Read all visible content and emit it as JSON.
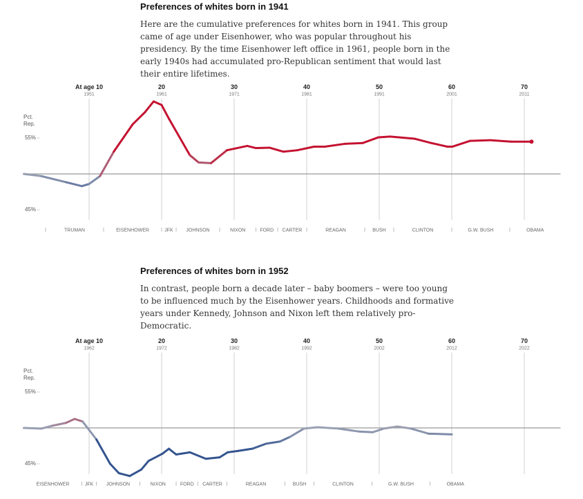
{
  "chart_data": [
    {
      "type": "line",
      "title": "Preferences of whites born in 1941",
      "description": "Here are the cumulative preferences for whites born in 1941. This group came of age under Eisenhower, who was popular throughout his presidency. By the time Eisenhower left office in 1961, people born in the early 1940s had accumulated pro-Republican sentiment that would last their entire lifetimes.",
      "y_label": [
        "Pct.",
        "Rep."
      ],
      "xlim": [
        1,
        75
      ],
      "ylim": [
        43,
        60.5
      ],
      "xticks": [
        {
          "value": 10,
          "label": "At age 10"
        },
        20,
        30,
        40,
        50,
        60,
        70
      ],
      "xtick_years": [
        "1951",
        "1961",
        "1971",
        "1981",
        "1991",
        "2001",
        "2011"
      ],
      "yticks": [
        {
          "value": 55,
          "label": "55%"
        },
        {
          "value": 45,
          "label": "45%"
        }
      ],
      "baseline": 50,
      "colors": {
        "above": "#c41230",
        "below": "#34548f",
        "neutral": "#9aa1b3"
      },
      "end_marker": true,
      "x": [
        1,
        3.4,
        6.8,
        9,
        10,
        11.5,
        13.4,
        16,
        17.7,
        18.9,
        20,
        21,
        23.9,
        25.1,
        26.8,
        29,
        31.8,
        33,
        34.9,
        36.8,
        38.7,
        41,
        42.5,
        45.3,
        47.7,
        49.9,
        51.5,
        54.9,
        57.2,
        59.4,
        60.1,
        62.5,
        65.3,
        68.2,
        71
      ],
      "values": [
        50.0,
        49.7,
        48.85,
        48.3,
        48.6,
        49.7,
        53.1,
        56.9,
        58.6,
        60.1,
        59.6,
        57.7,
        52.6,
        51.6,
        51.5,
        53.3,
        53.9,
        53.6,
        53.65,
        53.1,
        53.3,
        53.8,
        53.8,
        54.2,
        54.3,
        55.1,
        55.2,
        54.9,
        54.3,
        53.8,
        53.8,
        54.6,
        54.7,
        54.5,
        54.5
      ],
      "eras": [
        {
          "label": "TRUMAN",
          "start": 4,
          "end": 12
        },
        {
          "label": "EISENHOWER",
          "start": 12,
          "end": 20
        },
        {
          "label": "JFK",
          "start": 20,
          "end": 22
        },
        {
          "label": "JOHNSON",
          "start": 22,
          "end": 28
        },
        {
          "label": "NIXON",
          "start": 28,
          "end": 33
        },
        {
          "label": "FORD",
          "start": 33,
          "end": 36
        },
        {
          "label": "CARTER",
          "start": 36,
          "end": 40
        },
        {
          "label": "REAGAN",
          "start": 40,
          "end": 48
        },
        {
          "label": "BUSH",
          "start": 48,
          "end": 52
        },
        {
          "label": "CLINTON",
          "start": 52,
          "end": 60
        },
        {
          "label": "G.W. BUSH",
          "start": 60,
          "end": 68
        },
        {
          "label": "OBAMA",
          "start": 68,
          "end": 75
        }
      ]
    },
    {
      "type": "line",
      "title": "Preferences of whites born in 1952",
      "description": "In contrast, people born a decade later – baby boomers – were too young to be influenced much by the Eisenhower years. Childhoods and formative years under Kennedy, Johnson and Nixon left them relatively pro-Democratic.",
      "y_label": [
        "Pct.",
        "Rep."
      ],
      "xlim": [
        1,
        75
      ],
      "ylim": [
        43,
        60.5
      ],
      "xticks": [
        {
          "value": 10,
          "label": "At age 10"
        },
        20,
        30,
        40,
        50,
        60,
        70
      ],
      "xtick_years": [
        "1962",
        "1972",
        "1982",
        "1992",
        "2002",
        "2012",
        "2022"
      ],
      "yticks": [
        {
          "value": 55,
          "label": "55%"
        },
        {
          "value": 45,
          "label": "45%"
        }
      ],
      "baseline": 50,
      "colors": {
        "above": "#c41230",
        "below": "#34548f",
        "neutral": "#9aa1b3"
      },
      "end_marker": false,
      "x": [
        1,
        3.4,
        4.9,
        6.8,
        8,
        9.1,
        11,
        12.9,
        14.1,
        15.6,
        17.2,
        18.2,
        20.1,
        21,
        22,
        23.9,
        26.1,
        28,
        29.1,
        30.6,
        32.5,
        34.4,
        36.3,
        37.7,
        39.6,
        41.5,
        44.4,
        47.2,
        49.1,
        50.6,
        52.5,
        54.4,
        56.8,
        60
      ],
      "values": [
        50.0,
        49.9,
        50.3,
        50.7,
        51.25,
        50.9,
        48.4,
        45.0,
        43.7,
        43.3,
        44.2,
        45.4,
        46.4,
        47.1,
        46.3,
        46.6,
        45.7,
        45.9,
        46.6,
        46.8,
        47.1,
        47.8,
        48.1,
        48.75,
        49.9,
        50.1,
        49.9,
        49.5,
        49.4,
        49.9,
        50.2,
        49.9,
        49.2,
        49.1
      ],
      "eras": [
        {
          "label": "EISENHOWER",
          "start": 1,
          "end": 9
        },
        {
          "label": "JFK",
          "start": 9,
          "end": 11
        },
        {
          "label": "JOHNSON",
          "start": 11,
          "end": 17
        },
        {
          "label": "NIXON",
          "start": 17,
          "end": 22
        },
        {
          "label": "FORD",
          "start": 22,
          "end": 25
        },
        {
          "label": "CARTER",
          "start": 25,
          "end": 29
        },
        {
          "label": "REAGAN",
          "start": 29,
          "end": 37
        },
        {
          "label": "BUSH",
          "start": 37,
          "end": 41
        },
        {
          "label": "CLINTON",
          "start": 41,
          "end": 49
        },
        {
          "label": "G.W. BUSH",
          "start": 49,
          "end": 57
        },
        {
          "label": "OBAMA",
          "start": 57,
          "end": 64
        }
      ]
    }
  ]
}
